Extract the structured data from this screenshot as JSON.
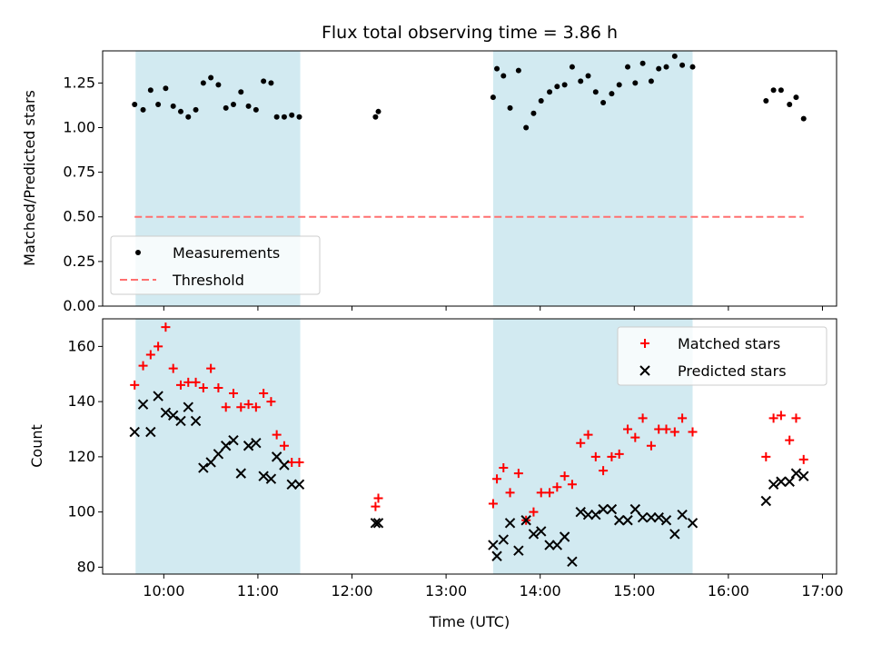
{
  "chart_data": [
    {
      "type": "scatter",
      "title": "Flux total observing time = 3.86 h",
      "xlabel": "",
      "ylabel": "Matched/Predicted stars",
      "x_unit": "hours UTC",
      "xlim": [
        9.35,
        17.15
      ],
      "ylim": [
        0.0,
        1.43
      ],
      "yticks": [
        "0.00",
        "0.25",
        "0.50",
        "0.75",
        "1.00",
        "1.25"
      ],
      "legend_position": "lower-left",
      "shaded_spans": [
        [
          9.7,
          11.45
        ],
        [
          13.5,
          15.62
        ]
      ],
      "shade_color": "#add8e6",
      "series": [
        {
          "name": "Measurements",
          "marker": "dot",
          "color": "#000000",
          "x": [
            9.69,
            9.78,
            9.86,
            9.94,
            10.02,
            10.1,
            10.18,
            10.26,
            10.34,
            10.42,
            10.5,
            10.58,
            10.66,
            10.74,
            10.82,
            10.9,
            10.98,
            11.06,
            11.14,
            11.2,
            11.28,
            11.36,
            11.44,
            12.25,
            12.28,
            13.5,
            13.54,
            13.61,
            13.68,
            13.77,
            13.85,
            13.93,
            14.01,
            14.1,
            14.18,
            14.26,
            14.34,
            14.43,
            14.51,
            14.59,
            14.67,
            14.76,
            14.84,
            14.93,
            15.01,
            15.09,
            15.18,
            15.26,
            15.34,
            15.43,
            15.51,
            15.62,
            16.4,
            16.48,
            16.56,
            16.65,
            16.72,
            16.8
          ],
          "y": [
            1.13,
            1.1,
            1.21,
            1.13,
            1.22,
            1.12,
            1.09,
            1.06,
            1.1,
            1.25,
            1.28,
            1.24,
            1.11,
            1.13,
            1.2,
            1.12,
            1.1,
            1.26,
            1.25,
            1.06,
            1.06,
            1.07,
            1.06,
            1.06,
            1.09,
            1.17,
            1.33,
            1.29,
            1.11,
            1.32,
            1.0,
            1.08,
            1.15,
            1.2,
            1.23,
            1.24,
            1.34,
            1.26,
            1.29,
            1.2,
            1.14,
            1.19,
            1.24,
            1.34,
            1.25,
            1.36,
            1.26,
            1.33,
            1.34,
            1.4,
            1.35,
            1.34,
            1.15,
            1.21,
            1.21,
            1.13,
            1.17,
            1.05
          ]
        },
        {
          "name": "Threshold",
          "marker": "dashed-line",
          "color": "#ff7070",
          "x": [
            9.69,
            16.8
          ],
          "y": [
            0.5,
            0.5
          ]
        }
      ]
    },
    {
      "type": "scatter",
      "title": "",
      "xlabel": "Time (UTC)",
      "ylabel": "Count",
      "x_unit": "hours UTC",
      "xlim": [
        9.35,
        17.15
      ],
      "ylim": [
        77.5,
        170
      ],
      "yticks": [
        "80",
        "100",
        "120",
        "140",
        "160"
      ],
      "xticks": [
        "10:00",
        "11:00",
        "12:00",
        "13:00",
        "14:00",
        "15:00",
        "16:00",
        "17:00"
      ],
      "legend_position": "top-right",
      "shaded_spans": [
        [
          9.7,
          11.45
        ],
        [
          13.5,
          15.62
        ]
      ],
      "shade_color": "#add8e6",
      "series": [
        {
          "name": "Matched stars",
          "marker": "plus",
          "color": "#ff0000",
          "x": [
            9.69,
            9.78,
            9.86,
            9.94,
            10.02,
            10.1,
            10.18,
            10.26,
            10.34,
            10.42,
            10.5,
            10.58,
            10.66,
            10.74,
            10.82,
            10.9,
            10.98,
            11.06,
            11.14,
            11.2,
            11.28,
            11.36,
            11.44,
            12.25,
            12.28,
            13.5,
            13.54,
            13.61,
            13.68,
            13.77,
            13.85,
            13.93,
            14.01,
            14.1,
            14.18,
            14.26,
            14.34,
            14.43,
            14.51,
            14.59,
            14.67,
            14.76,
            14.84,
            14.93,
            15.01,
            15.09,
            15.18,
            15.26,
            15.34,
            15.43,
            15.51,
            15.62,
            16.4,
            16.48,
            16.56,
            16.65,
            16.72,
            16.8
          ],
          "y": [
            146,
            153,
            157,
            160,
            167,
            152,
            146,
            147,
            147,
            145,
            152,
            145,
            138,
            143,
            138,
            139,
            138,
            143,
            140,
            128,
            124,
            118,
            118,
            102,
            105,
            103,
            112,
            116,
            107,
            114,
            97,
            100,
            107,
            107,
            109,
            113,
            110,
            125,
            128,
            120,
            115,
            120,
            121,
            130,
            127,
            134,
            124,
            130,
            130,
            129,
            134,
            129,
            120,
            134,
            135,
            126,
            134,
            119
          ]
        },
        {
          "name": "Predicted stars",
          "marker": "x",
          "color": "#000000",
          "x": [
            9.69,
            9.78,
            9.86,
            9.94,
            10.02,
            10.1,
            10.18,
            10.26,
            10.34,
            10.42,
            10.5,
            10.58,
            10.66,
            10.74,
            10.82,
            10.9,
            10.98,
            11.06,
            11.14,
            11.2,
            11.28,
            11.36,
            11.44,
            12.25,
            12.28,
            13.5,
            13.54,
            13.61,
            13.68,
            13.77,
            13.85,
            13.93,
            14.01,
            14.1,
            14.18,
            14.26,
            14.34,
            14.43,
            14.51,
            14.59,
            14.67,
            14.76,
            14.84,
            14.93,
            15.01,
            15.09,
            15.18,
            15.26,
            15.34,
            15.43,
            15.51,
            15.62,
            16.4,
            16.48,
            16.56,
            16.65,
            16.72,
            16.8
          ],
          "y": [
            129,
            139,
            129,
            142,
            136,
            135,
            133,
            138,
            133,
            116,
            118,
            121,
            124,
            126,
            114,
            124,
            125,
            113,
            112,
            120,
            117,
            110,
            110,
            96,
            96,
            88,
            84,
            90,
            96,
            86,
            97,
            92,
            93,
            88,
            88,
            91,
            82,
            100,
            99,
            99,
            101,
            101,
            97,
            97,
            101,
            98,
            98,
            98,
            97,
            92,
            99,
            96,
            104,
            110,
            111,
            111,
            114,
            113
          ]
        }
      ]
    }
  ]
}
